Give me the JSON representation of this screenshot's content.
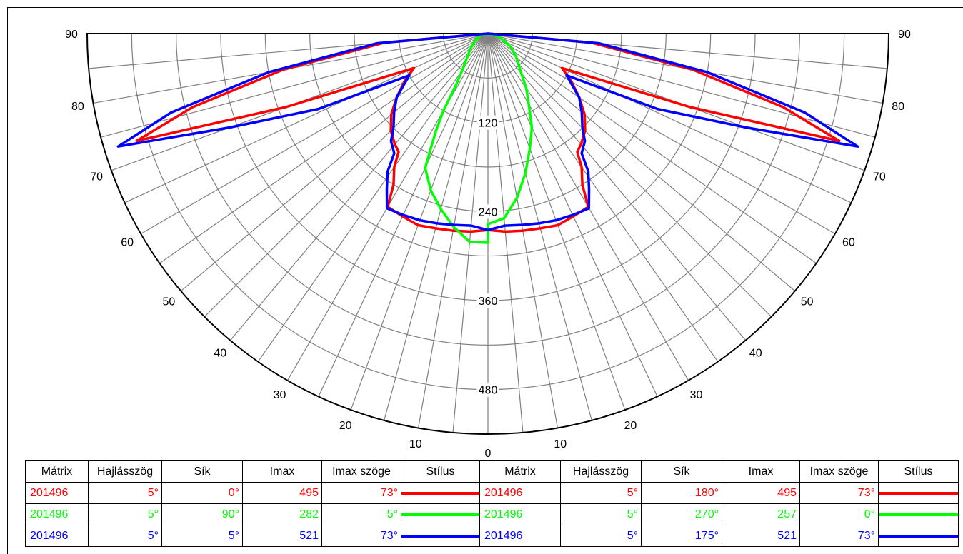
{
  "chart_data": {
    "type": "polar",
    "angle_labels": [
      "0",
      "10",
      "20",
      "30",
      "40",
      "50",
      "60",
      "70",
      "80",
      "90"
    ],
    "radial_labels": [
      "120",
      "240",
      "360",
      "480"
    ],
    "radial_max": 540,
    "series": [
      {
        "id": "red",
        "color": "#ff0000",
        "left": [
          [
            0,
            265
          ],
          [
            5,
            268
          ],
          [
            10,
            270
          ],
          [
            15,
            272
          ],
          [
            20,
            275
          ],
          [
            25,
            272
          ],
          [
            30,
            270
          ],
          [
            32,
            240
          ],
          [
            35,
            220
          ],
          [
            37,
            200
          ],
          [
            40,
            195
          ],
          [
            45,
            185
          ],
          [
            50,
            170
          ],
          [
            55,
            150
          ],
          [
            60,
            130
          ],
          [
            65,
            110
          ],
          [
            70,
            290
          ],
          [
            73,
            495
          ],
          [
            76,
            410
          ],
          [
            80,
            280
          ],
          [
            85,
            140
          ],
          [
            90,
            0
          ]
        ],
        "right": [
          [
            0,
            265
          ],
          [
            5,
            268
          ],
          [
            10,
            270
          ],
          [
            15,
            272
          ],
          [
            20,
            275
          ],
          [
            25,
            272
          ],
          [
            30,
            270
          ],
          [
            32,
            240
          ],
          [
            35,
            220
          ],
          [
            37,
            200
          ],
          [
            40,
            195
          ],
          [
            45,
            185
          ],
          [
            50,
            170
          ],
          [
            55,
            150
          ],
          [
            60,
            130
          ],
          [
            65,
            110
          ],
          [
            70,
            290
          ],
          [
            73,
            495
          ],
          [
            76,
            410
          ],
          [
            80,
            280
          ],
          [
            85,
            140
          ],
          [
            90,
            0
          ]
        ]
      },
      {
        "id": "green",
        "color": "#00ff00",
        "left": [
          [
            0,
            282
          ],
          [
            5,
            282
          ],
          [
            10,
            265
          ],
          [
            15,
            245
          ],
          [
            20,
            225
          ],
          [
            25,
            200
          ],
          [
            28,
            150
          ],
          [
            30,
            120
          ],
          [
            32,
            80
          ],
          [
            35,
            60
          ],
          [
            40,
            45
          ],
          [
            50,
            30
          ],
          [
            60,
            20
          ],
          [
            75,
            10
          ],
          [
            90,
            0
          ]
        ],
        "right": [
          [
            0,
            257
          ],
          [
            5,
            250
          ],
          [
            10,
            225
          ],
          [
            15,
            195
          ],
          [
            20,
            165
          ],
          [
            25,
            140
          ],
          [
            30,
            110
          ],
          [
            35,
            90
          ],
          [
            40,
            70
          ],
          [
            50,
            50
          ],
          [
            60,
            35
          ],
          [
            75,
            15
          ],
          [
            90,
            0
          ]
        ]
      },
      {
        "id": "blue",
        "color": "#0000ff",
        "left": [
          [
            0,
            265
          ],
          [
            5,
            260
          ],
          [
            10,
            262
          ],
          [
            15,
            265
          ],
          [
            20,
            268
          ],
          [
            25,
            270
          ],
          [
            30,
            272
          ],
          [
            33,
            250
          ],
          [
            36,
            230
          ],
          [
            38,
            205
          ],
          [
            42,
            195
          ],
          [
            45,
            180
          ],
          [
            50,
            165
          ],
          [
            55,
            150
          ],
          [
            62,
            120
          ],
          [
            66,
            250
          ],
          [
            70,
            370
          ],
          [
            73,
            521
          ],
          [
            76,
            440
          ],
          [
            80,
            300
          ],
          [
            85,
            150
          ],
          [
            90,
            0
          ]
        ],
        "right": [
          [
            0,
            265
          ],
          [
            5,
            260
          ],
          [
            10,
            262
          ],
          [
            15,
            265
          ],
          [
            20,
            268
          ],
          [
            25,
            270
          ],
          [
            30,
            272
          ],
          [
            33,
            250
          ],
          [
            36,
            230
          ],
          [
            38,
            205
          ],
          [
            42,
            195
          ],
          [
            45,
            180
          ],
          [
            50,
            165
          ],
          [
            55,
            150
          ],
          [
            62,
            120
          ],
          [
            66,
            250
          ],
          [
            70,
            370
          ],
          [
            73,
            521
          ],
          [
            76,
            440
          ],
          [
            80,
            300
          ],
          [
            85,
            150
          ],
          [
            90,
            0
          ]
        ]
      }
    ]
  },
  "legend": {
    "headers": [
      "Mátrix",
      "Hajlásszög",
      "Sík",
      "Imax",
      "Imax szöge",
      "Stílus"
    ],
    "rows": [
      {
        "color": "#ff0000",
        "a": [
          "201496",
          "5°",
          "0°",
          "495",
          "73°"
        ],
        "b": [
          "201496",
          "5°",
          "180°",
          "495",
          "73°"
        ]
      },
      {
        "color": "#00ff00",
        "a": [
          "201496",
          "5°",
          "90°",
          "282",
          "5°"
        ],
        "b": [
          "201496",
          "5°",
          "270°",
          "257",
          "0°"
        ]
      },
      {
        "color": "#0000ff",
        "a": [
          "201496",
          "5°",
          "5°",
          "521",
          "73°"
        ],
        "b": [
          "201496",
          "5°",
          "175°",
          "521",
          "73°"
        ]
      }
    ]
  }
}
